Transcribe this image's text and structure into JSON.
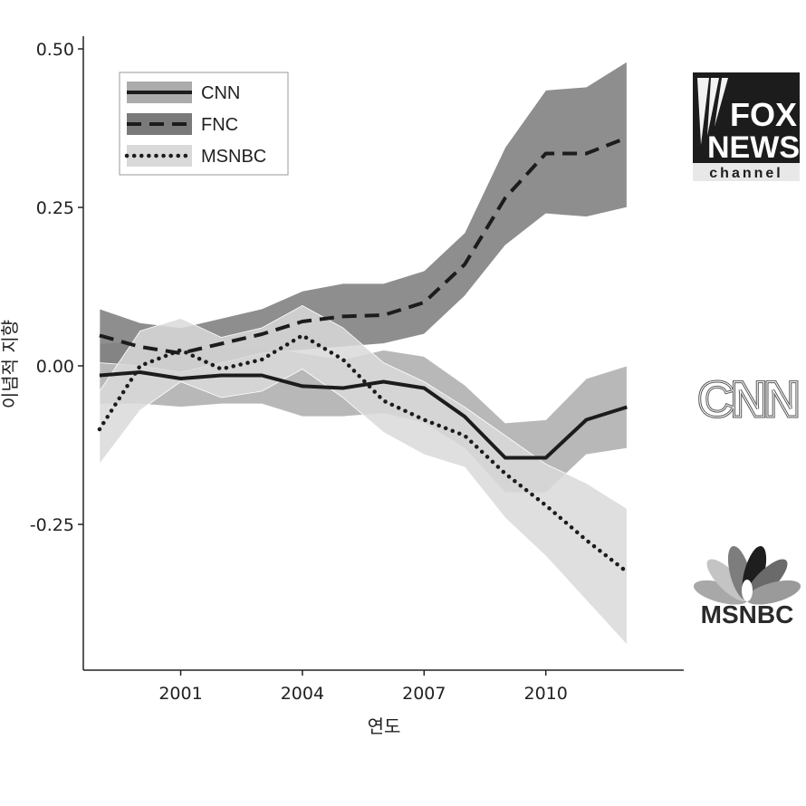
{
  "chart_data": {
    "type": "line",
    "xlabel": "연도",
    "ylabel": "이념적 지향",
    "xlim": [
      1998.6,
      2013.4
    ],
    "ylim": [
      -0.48,
      0.52
    ],
    "xticks": [
      2001,
      2004,
      2007,
      2010
    ],
    "xtick_labels": [
      "2001",
      "2004",
      "2007",
      "2010"
    ],
    "yticks": [
      0.5,
      0.25,
      0.0,
      -0.25
    ],
    "ytick_labels": [
      "0.50",
      "0.25",
      "0.00",
      "-0.25"
    ],
    "grid": false,
    "legend_position": "top-left",
    "x": [
      1999,
      2000,
      2001,
      2002,
      2003,
      2004,
      2005,
      2006,
      2007,
      2008,
      2009,
      2010,
      2011,
      2012
    ],
    "series": [
      {
        "name": "CNN",
        "style": "solid",
        "band_color": "#ababab",
        "values": [
          -0.015,
          -0.01,
          -0.02,
          -0.015,
          -0.015,
          -0.032,
          -0.035,
          -0.025,
          -0.035,
          -0.08,
          -0.145,
          -0.145,
          -0.085,
          -0.065
        ],
        "lower": [
          -0.06,
          -0.06,
          -0.065,
          -0.06,
          -0.06,
          -0.08,
          -0.08,
          -0.075,
          -0.09,
          -0.13,
          -0.2,
          -0.2,
          -0.14,
          -0.13
        ],
        "upper": [
          0.035,
          0.04,
          0.03,
          0.03,
          0.03,
          0.02,
          0.01,
          0.025,
          0.015,
          -0.03,
          -0.09,
          -0.085,
          -0.02,
          0.0
        ]
      },
      {
        "name": "FNC",
        "style": "dashed",
        "band_color": "#7a7a7a",
        "values": [
          0.048,
          0.03,
          0.02,
          0.035,
          0.05,
          0.07,
          0.078,
          0.08,
          0.1,
          0.16,
          0.265,
          0.335,
          0.335,
          0.36
        ],
        "lower": [
          0.005,
          0.0,
          -0.01,
          0.005,
          0.02,
          0.025,
          0.03,
          0.035,
          0.05,
          0.11,
          0.19,
          0.24,
          0.235,
          0.25
        ],
        "upper": [
          0.09,
          0.068,
          0.06,
          0.075,
          0.09,
          0.118,
          0.13,
          0.13,
          0.15,
          0.21,
          0.345,
          0.435,
          0.44,
          0.48
        ]
      },
      {
        "name": "MSNBC",
        "style": "dotted",
        "band_color": "#d9d9d9",
        "values": [
          -0.1,
          0.0,
          0.025,
          -0.005,
          0.01,
          0.048,
          0.01,
          -0.055,
          -0.085,
          -0.11,
          -0.17,
          -0.22,
          -0.275,
          -0.325
        ],
        "lower": [
          -0.155,
          -0.07,
          -0.025,
          -0.05,
          -0.04,
          -0.005,
          -0.05,
          -0.105,
          -0.14,
          -0.16,
          -0.24,
          -0.3,
          -0.37,
          -0.44
        ],
        "upper": [
          -0.04,
          0.055,
          0.075,
          0.045,
          0.06,
          0.095,
          0.06,
          0.005,
          -0.025,
          -0.065,
          -0.11,
          -0.155,
          -0.185,
          -0.225
        ]
      }
    ]
  },
  "logos": {
    "fox": {
      "line1": "FOX",
      "line2": "NEWS",
      "line3": "channel"
    },
    "cnn": {
      "text": "CNN"
    },
    "msnbc": {
      "text": "MSNBC"
    }
  }
}
